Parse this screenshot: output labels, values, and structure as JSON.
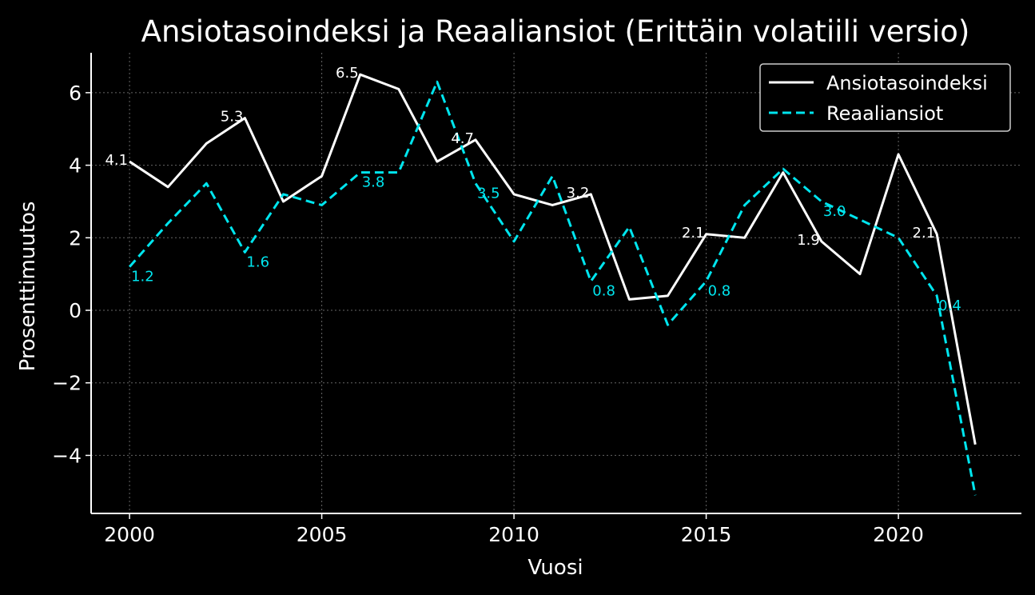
{
  "chart_data": {
    "type": "line",
    "title": "Ansiotasoindeksi ja Reaaliansiot (Erittäin volatiili versio)",
    "xlabel": "Vuosi",
    "ylabel": "Prosenttimuutos",
    "xlim": [
      1999,
      2023.2
    ],
    "ylim": [
      -5.6,
      7.1
    ],
    "xticks": [
      2000,
      2005,
      2010,
      2015,
      2020
    ],
    "yticks": [
      -4,
      -2,
      0,
      2,
      4,
      6
    ],
    "ytick_labels": [
      "−4",
      "−2",
      "0",
      "2",
      "4",
      "6"
    ],
    "grid": true,
    "legend_position": "top-right",
    "x": [
      2000,
      2001,
      2002,
      2003,
      2004,
      2005,
      2006,
      2007,
      2008,
      2009,
      2010,
      2011,
      2012,
      2013,
      2014,
      2015,
      2016,
      2017,
      2018,
      2019,
      2020,
      2021,
      2022
    ],
    "series": [
      {
        "name": "Ansiotasoindeksi",
        "color": "#ffffff",
        "style": "solid",
        "values": [
          4.1,
          3.4,
          4.6,
          5.3,
          3.0,
          3.7,
          6.5,
          6.1,
          4.1,
          4.7,
          3.2,
          2.9,
          3.2,
          0.3,
          0.4,
          2.1,
          2.0,
          3.8,
          1.9,
          1.0,
          4.3,
          2.1,
          -3.7
        ]
      },
      {
        "name": "Reaaliansiot",
        "color": "#00e5ee",
        "style": "dashed",
        "values": [
          1.2,
          2.4,
          3.5,
          1.6,
          3.2,
          2.9,
          3.8,
          3.8,
          6.3,
          3.5,
          1.9,
          3.7,
          0.8,
          2.3,
          -0.4,
          0.8,
          2.9,
          3.9,
          3.0,
          2.5,
          2.0,
          0.4,
          -5.1
        ]
      }
    ],
    "annotations": [
      {
        "series": 0,
        "x": 2000,
        "y": 4.1,
        "text": "4.1"
      },
      {
        "series": 0,
        "x": 2003,
        "y": 5.3,
        "text": "5.3"
      },
      {
        "series": 0,
        "x": 2006,
        "y": 6.5,
        "text": "6.5"
      },
      {
        "series": 0,
        "x": 2009,
        "y": 4.7,
        "text": "4.7"
      },
      {
        "series": 0,
        "x": 2012,
        "y": 3.2,
        "text": "3.2"
      },
      {
        "series": 0,
        "x": 2015,
        "y": 2.1,
        "text": "2.1"
      },
      {
        "series": 0,
        "x": 2018,
        "y": 1.9,
        "text": "1.9"
      },
      {
        "series": 0,
        "x": 2021,
        "y": 2.1,
        "text": "2.1"
      },
      {
        "series": 1,
        "x": 2000,
        "y": 1.2,
        "text": "1.2"
      },
      {
        "series": 1,
        "x": 2003,
        "y": 1.6,
        "text": "1.6"
      },
      {
        "series": 1,
        "x": 2006,
        "y": 3.8,
        "text": "3.8"
      },
      {
        "series": 1,
        "x": 2009,
        "y": 3.5,
        "text": "3.5"
      },
      {
        "series": 1,
        "x": 2012,
        "y": 0.8,
        "text": "0.8"
      },
      {
        "series": 1,
        "x": 2015,
        "y": 0.8,
        "text": "0.8"
      },
      {
        "series": 1,
        "x": 2018,
        "y": 3.0,
        "text": "3.0"
      },
      {
        "series": 1,
        "x": 2021,
        "y": 0.4,
        "text": "0.4"
      }
    ]
  }
}
